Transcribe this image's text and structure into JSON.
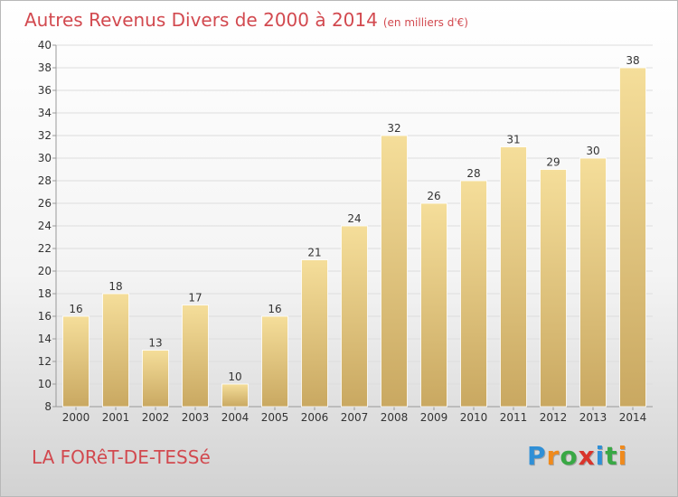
{
  "header": {
    "title": "Autres Revenus Divers de 2000 à 2014",
    "unit": "(en milliers d'€)"
  },
  "footer": {
    "place": "LA FORêT-DE-TESSé",
    "logo": {
      "text": "Proxiti",
      "letters": [
        "P",
        "r",
        "o",
        "x",
        "i",
        "t",
        "i"
      ],
      "colors": [
        "#2f8fd6",
        "#f08a1c",
        "#39a845",
        "#d9342b",
        "#2f8fd6",
        "#39a845",
        "#f08a1c"
      ]
    }
  },
  "chart_data": {
    "type": "bar",
    "categories": [
      "2000",
      "2001",
      "2002",
      "2003",
      "2004",
      "2005",
      "2006",
      "2007",
      "2008",
      "2009",
      "2010",
      "2011",
      "2012",
      "2013",
      "2014"
    ],
    "values": [
      16,
      18,
      13,
      17,
      10,
      16,
      21,
      24,
      32,
      26,
      28,
      31,
      29,
      30,
      38
    ],
    "ylim": [
      8,
      40
    ],
    "yticks": [
      8,
      10,
      12,
      14,
      16,
      18,
      20,
      22,
      24,
      26,
      28,
      30,
      32,
      34,
      36,
      38,
      40
    ],
    "grid": true,
    "colors": {
      "bar_light": "#f5de9a",
      "bar_dark": "#c9a861",
      "grid": "#dddddd",
      "axis": "#999999"
    }
  }
}
